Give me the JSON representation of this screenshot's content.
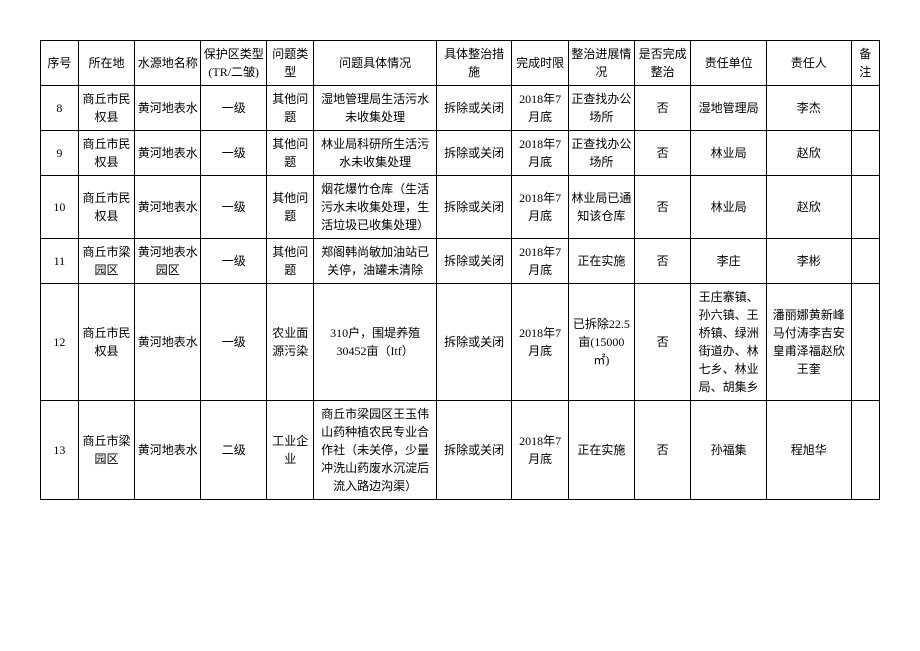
{
  "table": {
    "columns": [
      {
        "key": "seq",
        "label": "序号"
      },
      {
        "key": "location",
        "label": "所在地"
      },
      {
        "key": "source_name",
        "label": "水源地名称"
      },
      {
        "key": "protect_type",
        "label": "保护区类型 (TR/二皱)"
      },
      {
        "key": "problem_type",
        "label": "问题类型"
      },
      {
        "key": "problem_detail",
        "label": "问题具体情况"
      },
      {
        "key": "measure",
        "label": "具体整治措施"
      },
      {
        "key": "deadline",
        "label": "完成时限"
      },
      {
        "key": "progress",
        "label": "整治进展情况"
      },
      {
        "key": "complete",
        "label": "是否完成整治"
      },
      {
        "key": "unit",
        "label": "责任单位"
      },
      {
        "key": "person",
        "label": "责任人"
      },
      {
        "key": "note",
        "label": "备注"
      }
    ],
    "rows": [
      {
        "seq": "8",
        "location": "商丘市民权县",
        "source_name": "黄河地表水",
        "protect_type": "一级",
        "problem_type": "其他问题",
        "problem_detail": "湿地管理局生活污水未收集处理",
        "measure": "拆除或关闭",
        "deadline": "2018年7月底",
        "progress": "正查找办公场所",
        "complete": "否",
        "unit": "湿地管理局",
        "person": "李杰",
        "note": ""
      },
      {
        "seq": "9",
        "location": "商丘市民权县",
        "source_name": "黄河地表水",
        "protect_type": "一级",
        "problem_type": "其他问题",
        "problem_detail": "林业局科研所生活污水未收集处理",
        "measure": "拆除或关闭",
        "deadline": "2018年7月底",
        "progress": "正查找办公场所",
        "complete": "否",
        "unit": "林业局",
        "person": "赵欣",
        "note": ""
      },
      {
        "seq": "10",
        "location": "商丘市民权县",
        "source_name": "黄河地表水",
        "protect_type": "一级",
        "problem_type": "其他问题",
        "problem_detail": "烟花爆竹仓库（生活污水未收集处理，生活垃圾已收集处理）",
        "measure": "拆除或关闭",
        "deadline": "2018年7月底",
        "progress": "林业局已通知该仓库",
        "complete": "否",
        "unit": "林业局",
        "person": "赵欣",
        "note": ""
      },
      {
        "seq": "11",
        "location": "商丘市梁园区",
        "source_name": "黄河地表水园区",
        "protect_type": "一级",
        "problem_type": "其他问题",
        "problem_detail": "郑阁韩尚敏加油站已关停，油罐未清除",
        "measure": "拆除或关闭",
        "deadline": "2018年7月底",
        "progress": "正在实施",
        "complete": "否",
        "unit": "李庄",
        "person": "李彬",
        "note": ""
      },
      {
        "seq": "12",
        "location": "商丘市民权县",
        "source_name": "黄河地表水",
        "protect_type": "一级",
        "problem_type": "农业面源污染",
        "problem_detail": "310户，围堤养殖 30452亩（Itf）",
        "measure": "拆除或关闭",
        "deadline": "2018年7月底",
        "progress": "已拆除22.5亩(15000㎡)",
        "complete": "否",
        "unit": "王庄寨镇、孙六镇、王桥镇、绿洲街道办、林七乡、林业局、胡集乡",
        "person": "潘丽娜黄新峰马付涛李吉安皇甫泽福赵欣王奎",
        "note": ""
      },
      {
        "seq": "13",
        "location": "商丘市梁园区",
        "source_name": "黄河地表水",
        "protect_type": "二级",
        "problem_type": "工业企业",
        "problem_detail": "商丘市梁园区王玉伟山药种植农民专业合作社（未关停，少量冲洗山药废水沉淀后流入路边沟渠）",
        "measure": "拆除或关闭",
        "deadline": "2018年7月底",
        "progress": "正在实施",
        "complete": "否",
        "unit": "孙福集",
        "person": "程旭华",
        "note": ""
      }
    ],
    "styling": {
      "border_color": "#000000",
      "background_color": "#ffffff",
      "text_color": "#000000",
      "font_family": "SimSun",
      "font_size_pt": 9,
      "cell_align": "center",
      "cell_valign": "middle"
    }
  }
}
